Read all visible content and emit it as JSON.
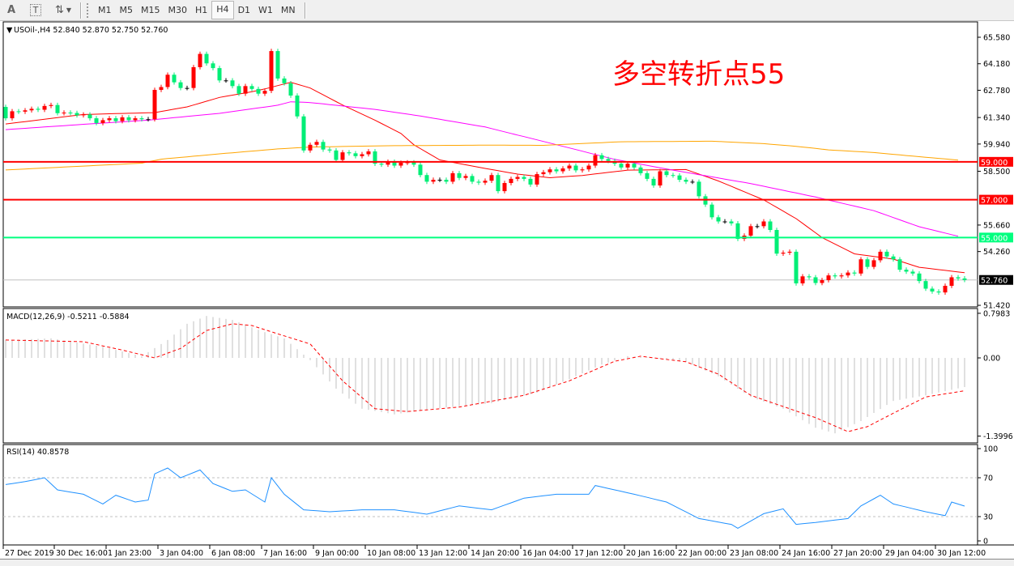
{
  "toolbar": {
    "icons": [
      "text-icon",
      "text-label-icon",
      "arrows-icon"
    ],
    "text_icon": "A",
    "label_icon": "T",
    "timeframes": [
      "M1",
      "M5",
      "M15",
      "M30",
      "H1",
      "H4",
      "D1",
      "W1",
      "MN"
    ],
    "active_timeframe": "H4"
  },
  "annotation": "多空转折点55",
  "colors": {
    "up": "#ff0000",
    "down": "#00ee76",
    "ma_fast": "#ff0000",
    "ma_mid": "#ff00ff",
    "ma_slow": "#ffa500",
    "level_red": "#ff0000",
    "level_green": "#00ff7f",
    "macd_hist": "#c0c0c0",
    "macd_signal": "#ff0000",
    "rsi": "#1e90ff"
  },
  "chart_data": [
    {
      "type": "candlestick",
      "title": "USOil-,H4  52.840 52.870 52.750 52.760",
      "symbol": "USOil-,H4",
      "last_ohlc": [
        52.84,
        52.87,
        52.75,
        52.76
      ],
      "ylim": [
        51.38,
        66.39
      ],
      "y_ticks": [
        "65.580",
        "64.180",
        "62.780",
        "61.340",
        "59.940",
        "58.500",
        "55.660",
        "54.260",
        "51.420"
      ],
      "x_ticks": [
        "27 Dec 2019",
        "30 Dec 16:00",
        "1 Jan 23:00",
        "3 Jan 04:00",
        "6 Jan 08:00",
        "7 Jan 16:00",
        "9 Jan 00:00",
        "10 Jan 08:00",
        "13 Jan 12:00",
        "14 Jan 20:00",
        "16 Jan 04:00",
        "17 Jan 12:00",
        "20 Jan 16:00",
        "22 Jan 00:00",
        "23 Jan 08:00",
        "24 Jan 16:00",
        "27 Jan 20:00",
        "29 Jan 04:00",
        "30 Jan 12:00"
      ],
      "first_open": 61.9,
      "close": [
        61.3,
        61.67,
        61.65,
        61.72,
        61.8,
        61.75,
        61.95,
        62.0,
        61.57,
        61.6,
        61.58,
        61.46,
        61.5,
        61.3,
        61.05,
        61.2,
        61.3,
        61.15,
        61.35,
        61.2,
        61.3,
        61.25,
        61.25,
        62.8,
        62.95,
        63.6,
        63.2,
        62.9,
        62.9,
        64.0,
        64.7,
        64.2,
        63.95,
        63.3,
        63.3,
        63.0,
        62.6,
        63.0,
        62.85,
        62.6,
        62.75,
        64.85,
        63.4,
        63.15,
        62.5,
        61.4,
        59.6,
        59.9,
        60.05,
        59.65,
        59.6,
        59.1,
        59.5,
        59.45,
        59.3,
        59.4,
        59.55,
        58.9,
        58.85,
        59.0,
        58.8,
        58.95,
        58.97,
        58.85,
        58.3,
        57.95,
        58.05,
        58.05,
        57.95,
        58.4,
        58.15,
        58.25,
        57.95,
        57.9,
        58.0,
        58.3,
        57.45,
        57.88,
        58.1,
        58.2,
        58.1,
        57.8,
        58.35,
        58.45,
        58.6,
        58.5,
        58.65,
        58.8,
        58.55,
        58.6,
        58.8,
        59.35,
        59.15,
        59.05,
        58.9,
        58.7,
        58.9,
        58.7,
        58.4,
        58.1,
        57.75,
        58.5,
        58.3,
        58.28,
        58.05,
        57.95,
        57.95,
        57.18,
        56.74,
        56.07,
        55.85,
        55.85,
        55.75,
        54.93,
        55.1,
        55.6,
        55.6,
        55.85,
        55.4,
        54.15,
        54.2,
        54.25,
        52.58,
        52.95,
        52.9,
        52.6,
        52.75,
        53.0,
        52.95,
        53.0,
        53.15,
        53.1,
        53.85,
        53.45,
        53.8,
        54.25,
        54.0,
        53.85,
        53.3,
        53.2,
        53.1,
        52.7,
        52.3,
        52.15,
        52.1,
        52.45,
        52.9,
        52.84,
        52.76
      ],
      "moving_averages": [
        {
          "color": "#ff0000",
          "points": [
            [
              0,
              61.0
            ],
            [
              12,
              61.5
            ],
            [
              23,
              61.6
            ],
            [
              28,
              61.9
            ],
            [
              33,
              62.4
            ],
            [
              38,
              62.7
            ],
            [
              40,
              62.85
            ],
            [
              44,
              63.2
            ],
            [
              47,
              62.9
            ],
            [
              52,
              62.0
            ],
            [
              57,
              61.2
            ],
            [
              61,
              60.5
            ],
            [
              63,
              59.9
            ],
            [
              67,
              59.1
            ],
            [
              74,
              58.65
            ],
            [
              79,
              58.35
            ],
            [
              84,
              58.16
            ],
            [
              89,
              58.28
            ],
            [
              96,
              58.56
            ],
            [
              105,
              58.59
            ],
            [
              110,
              57.99
            ],
            [
              117,
              56.99
            ],
            [
              122,
              56.0
            ],
            [
              126,
              55.0
            ],
            [
              131,
              54.14
            ],
            [
              137,
              53.86
            ],
            [
              141,
              53.43
            ],
            [
              148,
              53.14
            ]
          ]
        },
        {
          "color": "#ff00ff",
          "points": [
            [
              0,
              60.7
            ],
            [
              12,
              60.98
            ],
            [
              22,
              61.2
            ],
            [
              33,
              61.56
            ],
            [
              42,
              61.99
            ],
            [
              44,
              62.17
            ],
            [
              47,
              62.13
            ],
            [
              57,
              61.77
            ],
            [
              64,
              61.42
            ],
            [
              74,
              60.84
            ],
            [
              84,
              59.99
            ],
            [
              94,
              59.13
            ],
            [
              103,
              58.56
            ],
            [
              115,
              57.85
            ],
            [
              125,
              57.14
            ],
            [
              134,
              56.42
            ],
            [
              141,
              55.57
            ],
            [
              147,
              55.07
            ]
          ]
        },
        {
          "color": "#ffa500",
          "points": [
            [
              0,
              58.57
            ],
            [
              21,
              58.93
            ],
            [
              24,
              59.14
            ],
            [
              33,
              59.42
            ],
            [
              42,
              59.68
            ],
            [
              47,
              59.78
            ],
            [
              59,
              59.85
            ],
            [
              74,
              59.88
            ],
            [
              83,
              59.87
            ],
            [
              95,
              60.06
            ],
            [
              109,
              60.09
            ],
            [
              117,
              59.96
            ],
            [
              122,
              59.82
            ],
            [
              127,
              59.63
            ],
            [
              134,
              59.49
            ],
            [
              141,
              59.27
            ],
            [
              147,
              59.09
            ]
          ]
        }
      ],
      "levels": [
        {
          "value": 59.0,
          "label": "59.000",
          "color": "#ff0000"
        },
        {
          "value": 57.0,
          "label": "57.000",
          "color": "#ff0000"
        },
        {
          "value": 55.0,
          "label": "55.000",
          "color": "#00ff7f"
        }
      ],
      "last_price": {
        "value": 52.76,
        "label": "52.760"
      }
    },
    {
      "type": "bar+line",
      "title": "MACD(12,26,9) -0.5211 -0.5884",
      "ylim": [
        -1.3996,
        0.7983
      ],
      "y_ticks": [
        "0.7983",
        "0.00",
        "-1.3996"
      ],
      "y_tick_values": [
        0.7983,
        0,
        -1.3996
      ],
      "macd": [
        [
          0,
          0.32
        ],
        [
          7,
          0.35
        ],
        [
          15,
          0.2
        ],
        [
          21,
          0.03
        ],
        [
          25,
          0.32
        ],
        [
          28,
          0.61
        ],
        [
          31,
          0.75
        ],
        [
          35,
          0.68
        ],
        [
          40,
          0.46
        ],
        [
          43,
          0.35
        ],
        [
          47,
          -0.04
        ],
        [
          51,
          -0.55
        ],
        [
          55,
          -0.91
        ],
        [
          60,
          -1.01
        ],
        [
          66,
          -0.91
        ],
        [
          75,
          -0.81
        ],
        [
          82,
          -0.62
        ],
        [
          87,
          -0.38
        ],
        [
          92,
          -0.12
        ],
        [
          96,
          0.03
        ],
        [
          100,
          0.0
        ],
        [
          105,
          -0.07
        ],
        [
          110,
          -0.33
        ],
        [
          115,
          -0.7
        ],
        [
          120,
          -0.91
        ],
        [
          125,
          -1.25
        ],
        [
          128,
          -1.35
        ],
        [
          132,
          -1.13
        ],
        [
          137,
          -0.77
        ],
        [
          142,
          -0.67
        ],
        [
          148,
          -0.5211
        ]
      ],
      "signal": [
        [
          0,
          0.32
        ],
        [
          12,
          0.29
        ],
        [
          18,
          0.14
        ],
        [
          23,
          0.0
        ],
        [
          27,
          0.17
        ],
        [
          31,
          0.49
        ],
        [
          35,
          0.61
        ],
        [
          38,
          0.58
        ],
        [
          42,
          0.43
        ],
        [
          47,
          0.25
        ],
        [
          52,
          -0.41
        ],
        [
          57,
          -0.91
        ],
        [
          62,
          -0.96
        ],
        [
          70,
          -0.88
        ],
        [
          80,
          -0.67
        ],
        [
          87,
          -0.41
        ],
        [
          94,
          -0.06
        ],
        [
          98,
          0.03
        ],
        [
          105,
          -0.07
        ],
        [
          110,
          -0.29
        ],
        [
          115,
          -0.67
        ],
        [
          120,
          -0.87
        ],
        [
          125,
          -1.07
        ],
        [
          130,
          -1.32
        ],
        [
          133,
          -1.23
        ],
        [
          137,
          -0.99
        ],
        [
          142,
          -0.7
        ],
        [
          148,
          -0.5884
        ]
      ]
    },
    {
      "type": "line",
      "title": "RSI(14) 40.8578",
      "ylim": [
        0,
        100
      ],
      "y_ticks": [
        "100",
        "70",
        "30",
        "0"
      ],
      "y_tick_values": [
        100,
        70,
        30,
        0
      ],
      "levels": [
        70,
        30
      ],
      "rsi": [
        [
          0,
          63
        ],
        [
          3,
          66
        ],
        [
          6,
          70
        ],
        [
          8,
          57.5
        ],
        [
          12,
          53
        ],
        [
          15,
          43
        ],
        [
          17,
          52
        ],
        [
          20,
          45
        ],
        [
          22,
          47
        ],
        [
          23,
          74
        ],
        [
          25,
          80
        ],
        [
          27,
          70
        ],
        [
          30,
          78
        ],
        [
          32,
          64
        ],
        [
          35,
          56
        ],
        [
          37,
          57.5
        ],
        [
          40,
          45
        ],
        [
          41,
          70
        ],
        [
          43,
          53
        ],
        [
          46,
          37
        ],
        [
          50,
          35
        ],
        [
          55,
          37
        ],
        [
          60,
          37
        ],
        [
          65,
          32.5
        ],
        [
          70,
          41
        ],
        [
          75,
          37
        ],
        [
          80,
          49
        ],
        [
          85,
          53
        ],
        [
          90,
          53
        ],
        [
          91,
          62
        ],
        [
          97,
          53
        ],
        [
          102,
          45
        ],
        [
          107,
          28
        ],
        [
          112,
          22
        ],
        [
          113,
          18
        ],
        [
          117,
          33
        ],
        [
          120,
          38
        ],
        [
          122,
          22
        ],
        [
          125,
          24
        ],
        [
          130,
          28
        ],
        [
          132,
          41
        ],
        [
          135,
          52
        ],
        [
          137,
          43
        ],
        [
          142,
          35
        ],
        [
          145,
          31
        ],
        [
          146,
          45
        ],
        [
          148,
          40.8578
        ]
      ]
    }
  ]
}
